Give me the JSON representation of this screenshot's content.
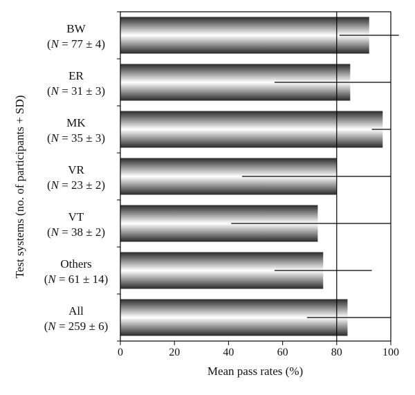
{
  "chart_data": {
    "type": "bar",
    "orientation": "horizontal",
    "xlabel": "Mean pass rates (%)",
    "ylabel": "Test systems (no. of participants + SD)",
    "xlim": [
      0,
      100
    ],
    "xticks": [
      0,
      20,
      40,
      60,
      80,
      100
    ],
    "reference_line_x": 80,
    "grid": false,
    "categories": [
      {
        "name": "BW",
        "n_label": "N = 77 ± 4"
      },
      {
        "name": "ER",
        "n_label": "N = 31 ± 3"
      },
      {
        "name": "MK",
        "n_label": "N = 35 ± 3"
      },
      {
        "name": "VR",
        "n_label": "N = 23 ± 2"
      },
      {
        "name": "VT",
        "n_label": "N = 38 ± 2"
      },
      {
        "name": "Others",
        "n_label": "N = 61 ± 14"
      },
      {
        "name": "All",
        "n_label": "N = 259 ± 6"
      }
    ],
    "values": [
      92,
      85,
      97,
      80,
      73,
      75,
      84
    ],
    "error_bars": [
      [
        81,
        103
      ],
      [
        57,
        100
      ],
      [
        93,
        100
      ],
      [
        45,
        100
      ],
      [
        41,
        100
      ],
      [
        57,
        93
      ],
      [
        69,
        100
      ]
    ],
    "bar_style": "horizontal-gradient (dark-light-dark)",
    "colors": {
      "bar_dark": "#2a2a2a",
      "bar_light": "#ffffff",
      "axis": "#000000",
      "text": "#111111"
    }
  }
}
